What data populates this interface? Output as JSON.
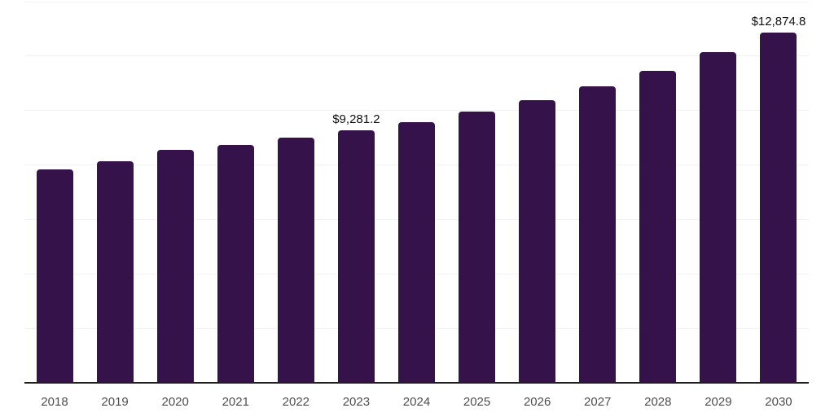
{
  "chart_data": {
    "type": "bar",
    "title": "",
    "xlabel": "",
    "ylabel": "",
    "legend": "none",
    "categories": [
      "2018",
      "2019",
      "2020",
      "2021",
      "2022",
      "2023",
      "2024",
      "2025",
      "2026",
      "2027",
      "2028",
      "2029",
      "2030"
    ],
    "values": [
      7830,
      8140,
      8560,
      8750,
      9015,
      9281.2,
      9580,
      9950,
      10370,
      10900,
      11470,
      12140,
      12874.8
    ],
    "data_labels": [
      {
        "category": "2023",
        "text": "$9,281.2"
      },
      {
        "category": "2030",
        "text": "$12,874.8"
      }
    ],
    "ylim": [
      0,
      14000
    ],
    "grid": {
      "horizontal": true,
      "vertical": false,
      "interval": 2000
    },
    "value_prefix": "$"
  },
  "style": {
    "background": "#ffffff",
    "bar_color": "#351249",
    "grid_color": "#f2f2f2",
    "axis_color": "#1f1f1f",
    "tick_label_color": "#4d4d4d",
    "data_label_color": "#111111"
  }
}
